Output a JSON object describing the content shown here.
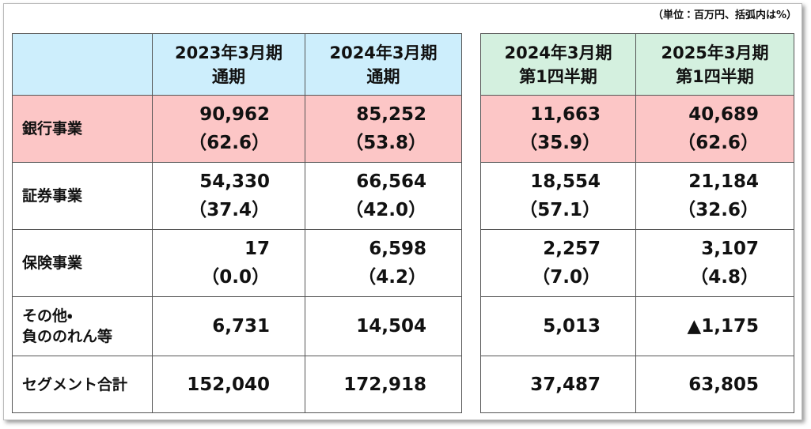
{
  "header": {
    "unit": "（単位：百万円、括弧内は%）"
  },
  "table": {
    "columns": [
      [
        "2023年3月期",
        "通期"
      ],
      [
        "2024年3月期",
        "通期"
      ],
      [
        "2024年3月期",
        "第1四半期"
      ],
      [
        "2025年3月期",
        "第1四半期"
      ]
    ],
    "rows": [
      {
        "label": [
          "銀行事業"
        ],
        "cells": [
          [
            "90,962",
            "（62.6）"
          ],
          [
            "85,252",
            "（53.8）"
          ],
          [
            "11,663",
            "（35.9）"
          ],
          [
            "40,689",
            "（62.6）"
          ]
        ]
      },
      {
        "label": [
          "証券事業"
        ],
        "cells": [
          [
            "54,330",
            "（37.4）"
          ],
          [
            "66,564",
            "（42.0）"
          ],
          [
            "18,554",
            "（57.1）"
          ],
          [
            "21,184",
            "（32.6）"
          ]
        ]
      },
      {
        "label": [
          "保険事業"
        ],
        "cells": [
          [
            "17",
            "（0.0）"
          ],
          [
            "6,598",
            "（4.2）"
          ],
          [
            "2,257",
            "（7.0）"
          ],
          [
            "3,107",
            "（4.8）"
          ]
        ]
      },
      {
        "label": [
          "その他・",
          "負ののれん等"
        ],
        "cells": [
          [
            "6,731"
          ],
          [
            "14,504"
          ],
          [
            "5,013"
          ],
          [
            "▲1,175"
          ]
        ]
      },
      {
        "label": [
          "セグメント合計"
        ],
        "cells": [
          [
            "152,040"
          ],
          [
            "172,918"
          ],
          [
            "37,487"
          ],
          [
            "63,805"
          ]
        ]
      }
    ]
  }
}
